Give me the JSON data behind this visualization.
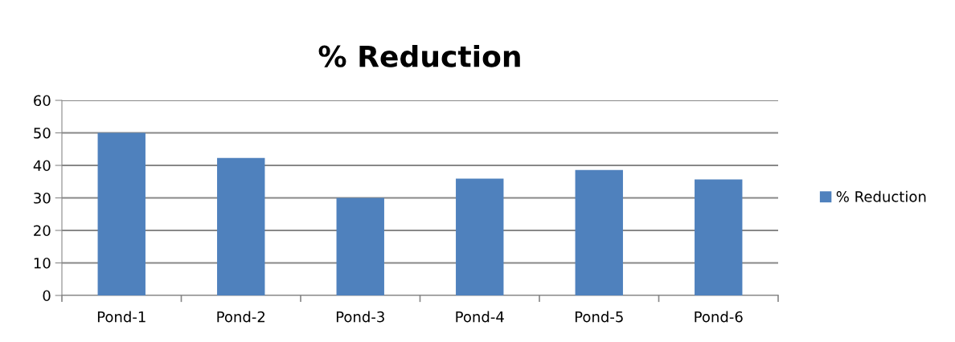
{
  "chart_data": {
    "type": "bar",
    "title": "% Reduction",
    "categories": [
      "Pond-1",
      "Pond-2",
      "Pond-3",
      "Pond-4",
      "Pond-5",
      "Pond-6"
    ],
    "series": [
      {
        "name": "% Reduction",
        "color": "#4f81bd",
        "values": [
          50,
          42.3,
          30,
          35.9,
          38.6,
          35.7
        ]
      }
    ],
    "ylim": [
      0,
      60
    ],
    "yticks": [
      0,
      10,
      20,
      30,
      40,
      50,
      60
    ],
    "grid": "y",
    "legend": "right"
  }
}
